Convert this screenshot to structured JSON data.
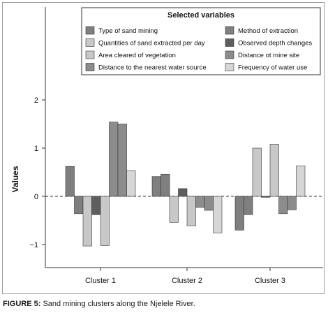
{
  "chart_data": {
    "type": "bar",
    "title": "",
    "ylabel": "Values",
    "xlabel": "",
    "ylim": [
      -1.5,
      2.5
    ],
    "yticks": [
      2,
      1,
      0,
      -1
    ],
    "ytick_labels": [
      "2",
      "1",
      "0",
      "−1"
    ],
    "categories": [
      "Cluster 1",
      "Cluster 2",
      "Cluster 3"
    ],
    "legend": {
      "title": "Selected variables",
      "placement": "top-right"
    },
    "series": [
      {
        "name": "Type of sand mining",
        "color": "#7f7f7f",
        "values": [
          0.62,
          0.41,
          -0.7
        ]
      },
      {
        "name": "Method of extraction",
        "color": "#7f7f7f",
        "values": [
          -0.36,
          0.46,
          -0.38
        ]
      },
      {
        "name": "Quantities of sand extracted per day",
        "color": "#c8c8c8",
        "values": [
          -1.03,
          -0.54,
          1.0
        ]
      },
      {
        "name": "Observed depth changes",
        "color": "#5e5e5e",
        "values": [
          -0.38,
          0.16,
          -0.02
        ]
      },
      {
        "name": "Area cleared of vegetation",
        "color": "#c8c8c8",
        "values": [
          -1.02,
          -0.61,
          1.08
        ]
      },
      {
        "name": "Distance ot mine site",
        "color": "#8c8c8c",
        "values": [
          1.54,
          -0.23,
          -0.36
        ]
      },
      {
        "name": "Distance to the nearest water source",
        "color": "#8c8c8c",
        "values": [
          1.5,
          -0.29,
          -0.28
        ]
      },
      {
        "name": "Frequency of water use",
        "color": "#d6d6d6",
        "values": [
          0.53,
          -0.76,
          0.63
        ]
      }
    ]
  },
  "caption": {
    "prefix": "FIGURE 5:",
    "text": " Sand mining clusters along the Njelele River."
  }
}
